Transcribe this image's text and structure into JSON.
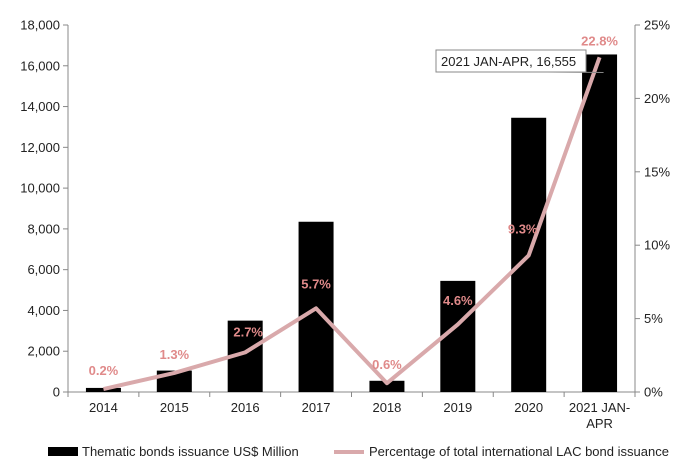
{
  "colors": {
    "bar": "#000000",
    "line": "#d9a9ab",
    "label": "#e08a8a",
    "axis": "#888888"
  },
  "chart_data": {
    "type": "bar",
    "categories": [
      "2014",
      "2015",
      "2016",
      "2017",
      "2018",
      "2019",
      "2020",
      "2021 JAN-APR"
    ],
    "category_labels": [
      [
        "2014"
      ],
      [
        "2015"
      ],
      [
        "2016"
      ],
      [
        "2017"
      ],
      [
        "2018"
      ],
      [
        "2019"
      ],
      [
        "2020"
      ],
      [
        "2021 JAN-",
        "APR"
      ]
    ],
    "series": [
      {
        "name": "Thematic bonds issuance US$ Million",
        "type": "bar",
        "axis": "left",
        "values": [
          200,
          1050,
          3500,
          8350,
          550,
          5450,
          13450,
          16555
        ]
      },
      {
        "name": "Percentage of total international LAC bond issuance",
        "type": "line",
        "axis": "right",
        "values": [
          0.2,
          1.3,
          2.7,
          5.7,
          0.6,
          4.6,
          9.3,
          22.8
        ],
        "labels": [
          "0.2%",
          "1.3%",
          "2.7%",
          "5.7%",
          "0.6%",
          "4.6%",
          "9.3%",
          "22.8%"
        ]
      }
    ],
    "ylim_left": [
      0,
      18000
    ],
    "yticks_left": [
      "0",
      "2,000",
      "4,000",
      "6,000",
      "8,000",
      "10,000",
      "12,000",
      "14,000",
      "16,000",
      "18,000"
    ],
    "ylim_right": [
      0,
      25
    ],
    "yticks_right": [
      "0%",
      "5%",
      "10%",
      "15%",
      "20%",
      "25%"
    ],
    "annotation": "2021 JAN-APR, 16,555",
    "legend_position": "bottom",
    "grid": false
  }
}
